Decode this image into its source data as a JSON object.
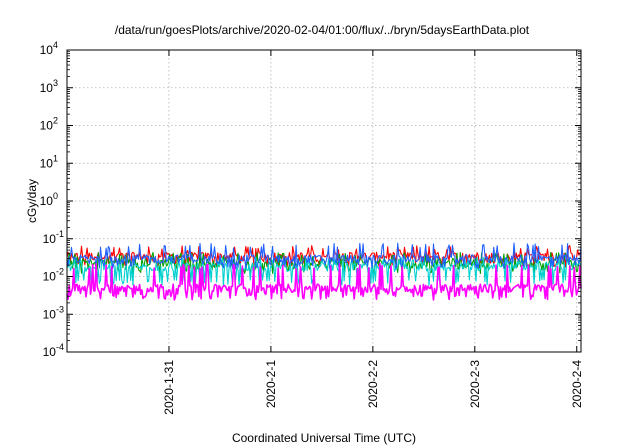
{
  "chart_data": {
    "type": "line",
    "title": "/data/run/goesPlots/archive/2020-02-04/01:00/flux/../bryn/5daysEarthData.plot",
    "xlabel": "Coordinated Universal Time (UTC)",
    "ylabel": "cGy/day",
    "y_scale": "log",
    "ylim_exponents": [
      -4,
      4
    ],
    "y_tick_base": "10",
    "y_tick_exponents": [
      "-4",
      "-3",
      "-2",
      "-1",
      "0",
      "1",
      "2",
      "3",
      "4"
    ],
    "x_domain": [
      "2020-01-30T00:00",
      "2020-02-04T01:00"
    ],
    "x_ticks": [
      {
        "label": "2020-1-31",
        "date": "2020-01-31T00:00"
      },
      {
        "label": "2020-2-1",
        "date": "2020-02-01T00:00"
      },
      {
        "label": "2020-2-2",
        "date": "2020-02-02T00:00"
      },
      {
        "label": "2020-2-3",
        "date": "2020-02-03T00:00"
      },
      {
        "label": "2020-2-4",
        "date": "2020-02-04T00:00"
      }
    ],
    "grid": true,
    "series": [
      {
        "color": "#ff0000",
        "typical": 0.035,
        "low": 0.022,
        "high": 0.06
      },
      {
        "color": "#00a000",
        "typical": 0.024,
        "low": 0.015,
        "high": 0.04
      },
      {
        "color": "#00d0d0",
        "typical": 0.018,
        "low": 0.007,
        "high": 0.03
      },
      {
        "color": "#2060ff",
        "typical": 0.03,
        "low": 0.02,
        "high": 0.07
      },
      {
        "color": "#ff00ff",
        "typical": 0.005,
        "low": 0.003,
        "high": 0.02
      }
    ]
  }
}
